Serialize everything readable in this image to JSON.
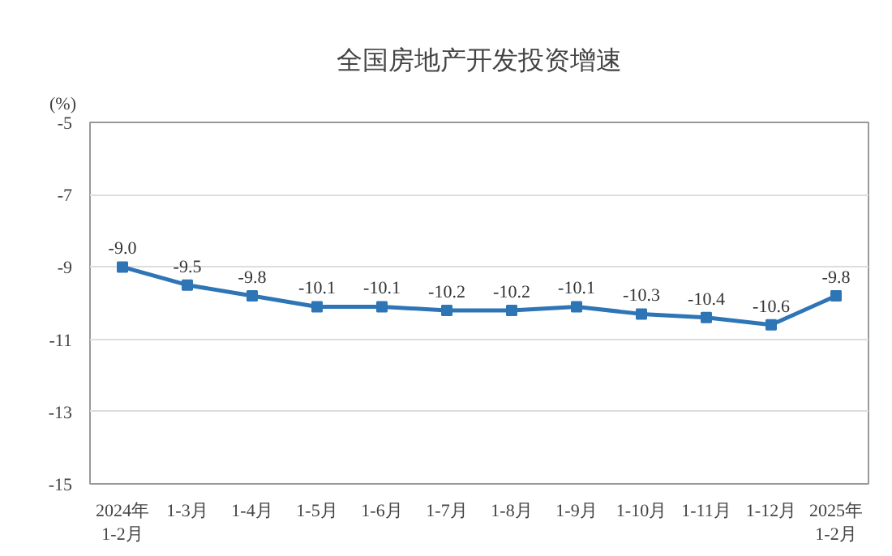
{
  "chart_data": {
    "type": "line",
    "title": "全国房地产开发投资增速",
    "ylabel": "(%)",
    "categories": [
      "2024年\n1-2月",
      "1-3月",
      "1-4月",
      "1-5月",
      "1-6月",
      "1-7月",
      "1-8月",
      "1-9月",
      "1-10月",
      "1-11月",
      "1-12月",
      "2025年\n1-2月"
    ],
    "series": [
      {
        "color": "#2e75b6",
        "values": [
          -9.0,
          -9.5,
          -9.8,
          -10.1,
          -10.1,
          -10.2,
          -10.2,
          -10.1,
          -10.3,
          -10.4,
          -10.6,
          -9.8
        ],
        "value_labels": [
          "-9.0",
          "-9.5",
          "-9.8",
          "-10.1",
          "-10.1",
          "-10.2",
          "-10.2",
          "-10.1",
          "-10.3",
          "-10.4",
          "-10.6",
          "-9.8"
        ]
      }
    ],
    "ylim": [
      -15,
      -5
    ],
    "yticks": [
      -15,
      -13,
      -11,
      -9,
      -7,
      -5
    ],
    "grid": "y",
    "marker": "square",
    "line_style": "solid"
  }
}
